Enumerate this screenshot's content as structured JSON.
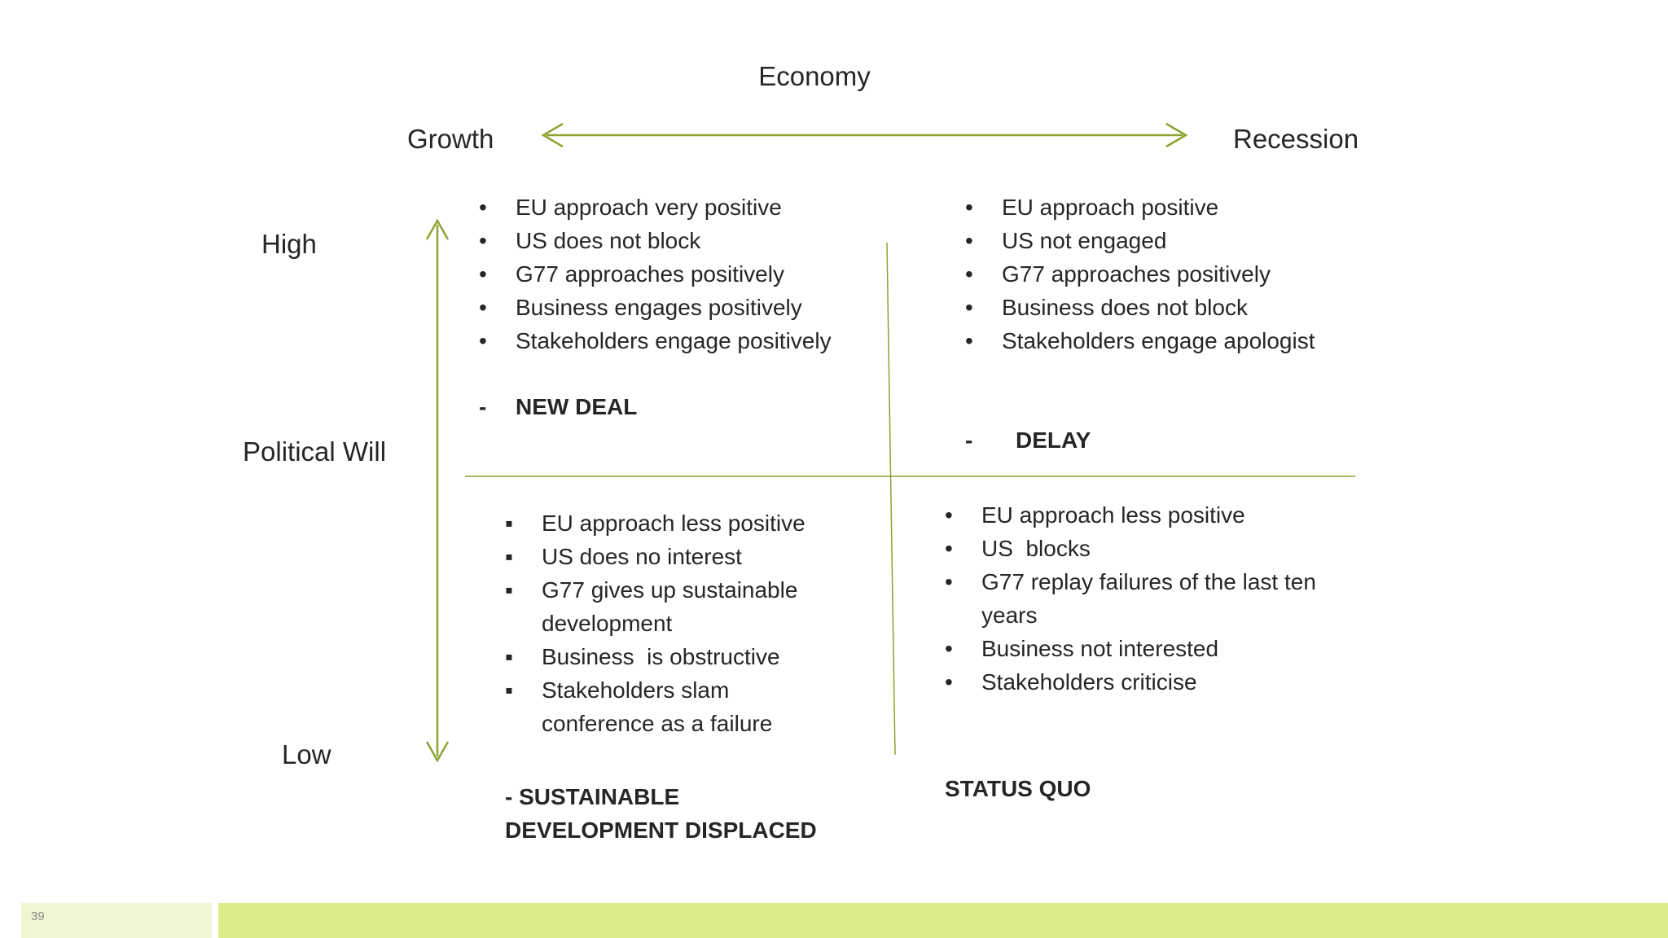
{
  "slide": {
    "page_number": "39",
    "colors": {
      "accent_olive": "#8CA331",
      "footer_bar_main": "#DCEA87",
      "footer_bar_left": "#F0F5D2",
      "text": "#262626"
    }
  },
  "axes": {
    "top_title": "Economy",
    "x_left": "Growth",
    "x_right": "Recession",
    "y_label": "Political Will",
    "y_top": "High",
    "y_bottom": "Low"
  },
  "icons": {
    "bullet_round": "•",
    "bullet_square": "▪"
  },
  "quadrants": {
    "top_left": {
      "items": [
        "EU approach very positive",
        "US does not block",
        "G77 approaches positively",
        "Business engages positively",
        "Stakeholders engage positively"
      ],
      "label_dash": "-",
      "label": "NEW DEAL"
    },
    "top_right": {
      "items": [
        "EU approach positive",
        "US not engaged",
        "G77 approaches positively",
        "Business does not block",
        "Stakeholders engage apologist"
      ],
      "label_dash": "-",
      "label": "DELAY"
    },
    "bottom_left": {
      "items": [
        "EU approach less positive",
        "US does no interest",
        "G77 gives up sustainable development",
        "Business  is obstructive",
        "Stakeholders slam conference as a failure"
      ],
      "label": "- SUSTAINABLE DEVELOPMENT DISPLACED"
    },
    "bottom_right": {
      "items": [
        "EU approach less positive",
        "US  blocks",
        "G77 replay failures of the last ten years",
        "Business not interested",
        "Stakeholders criticise"
      ],
      "label": "STATUS QUO"
    }
  }
}
